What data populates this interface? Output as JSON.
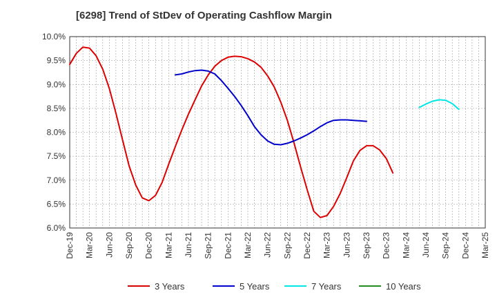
{
  "chart_data": {
    "type": "line",
    "title": "[6298]  Trend of StDev of Operating Cashflow Margin",
    "xlabel": "",
    "ylabel": "",
    "x_ticks": [
      "Dec-19",
      "Mar-20",
      "Jun-20",
      "Sep-20",
      "Dec-20",
      "Mar-21",
      "Jun-21",
      "Sep-21",
      "Dec-21",
      "Mar-22",
      "Jun-22",
      "Sep-22",
      "Dec-22",
      "Mar-23",
      "Jun-23",
      "Sep-23",
      "Dec-23",
      "Mar-24",
      "Jun-24",
      "Sep-24",
      "Dec-24",
      "Mar-25"
    ],
    "y_ticks": [
      "6.0%",
      "6.5%",
      "7.0%",
      "7.5%",
      "8.0%",
      "8.5%",
      "9.0%",
      "9.5%",
      "10.0%"
    ],
    "ylim": [
      6.0,
      10.0
    ],
    "grid": true,
    "legend_position": "bottom",
    "series": [
      {
        "name": "3 Years",
        "color": "#dd0000",
        "start_month": "Dec-19",
        "values": [
          9.42,
          9.65,
          9.78,
          9.76,
          9.6,
          9.32,
          8.92,
          8.4,
          7.85,
          7.3,
          6.9,
          6.63,
          6.57,
          6.68,
          6.95,
          7.33,
          7.7,
          8.05,
          8.38,
          8.68,
          8.97,
          9.2,
          9.38,
          9.5,
          9.57,
          9.59,
          9.58,
          9.54,
          9.47,
          9.36,
          9.18,
          8.95,
          8.63,
          8.25,
          7.78,
          7.28,
          6.8,
          6.35,
          6.22,
          6.26,
          6.45,
          6.72,
          7.05,
          7.4,
          7.62,
          7.72,
          7.72,
          7.63,
          7.45,
          7.15
        ]
      },
      {
        "name": "5 Years",
        "color": "#0000cc",
        "start_month": "Dec-20",
        "values": [
          null,
          null,
          null,
          null,
          null,
          null,
          null,
          null,
          null,
          null,
          null,
          null,
          null,
          null,
          null,
          null,
          9.2,
          9.22,
          9.26,
          9.29,
          9.3,
          9.28,
          9.22,
          9.08,
          8.92,
          8.75,
          8.56,
          8.35,
          8.12,
          7.95,
          7.82,
          7.75,
          7.74,
          7.77,
          7.82,
          7.88,
          7.95,
          8.03,
          8.12,
          8.2,
          8.25,
          8.26,
          8.26,
          8.25,
          8.24,
          8.23
        ]
      },
      {
        "name": "7 Years",
        "color": "#00e5e5",
        "start_month": "Dec-21",
        "values": [
          null,
          null,
          null,
          null,
          null,
          null,
          null,
          null,
          null,
          null,
          null,
          null,
          null,
          null,
          null,
          null,
          null,
          null,
          null,
          null,
          null,
          null,
          null,
          null,
          null,
          null,
          null,
          null,
          null,
          null,
          null,
          null,
          null,
          null,
          null,
          null,
          null,
          null,
          null,
          null,
          null,
          null,
          null,
          null,
          null,
          null,
          null,
          null,
          null,
          null,
          null,
          null,
          null,
          8.52,
          8.59,
          8.65,
          8.68,
          8.67,
          8.6,
          8.48
        ]
      },
      {
        "name": "10 Years",
        "color": "#228b22",
        "values": []
      }
    ]
  }
}
